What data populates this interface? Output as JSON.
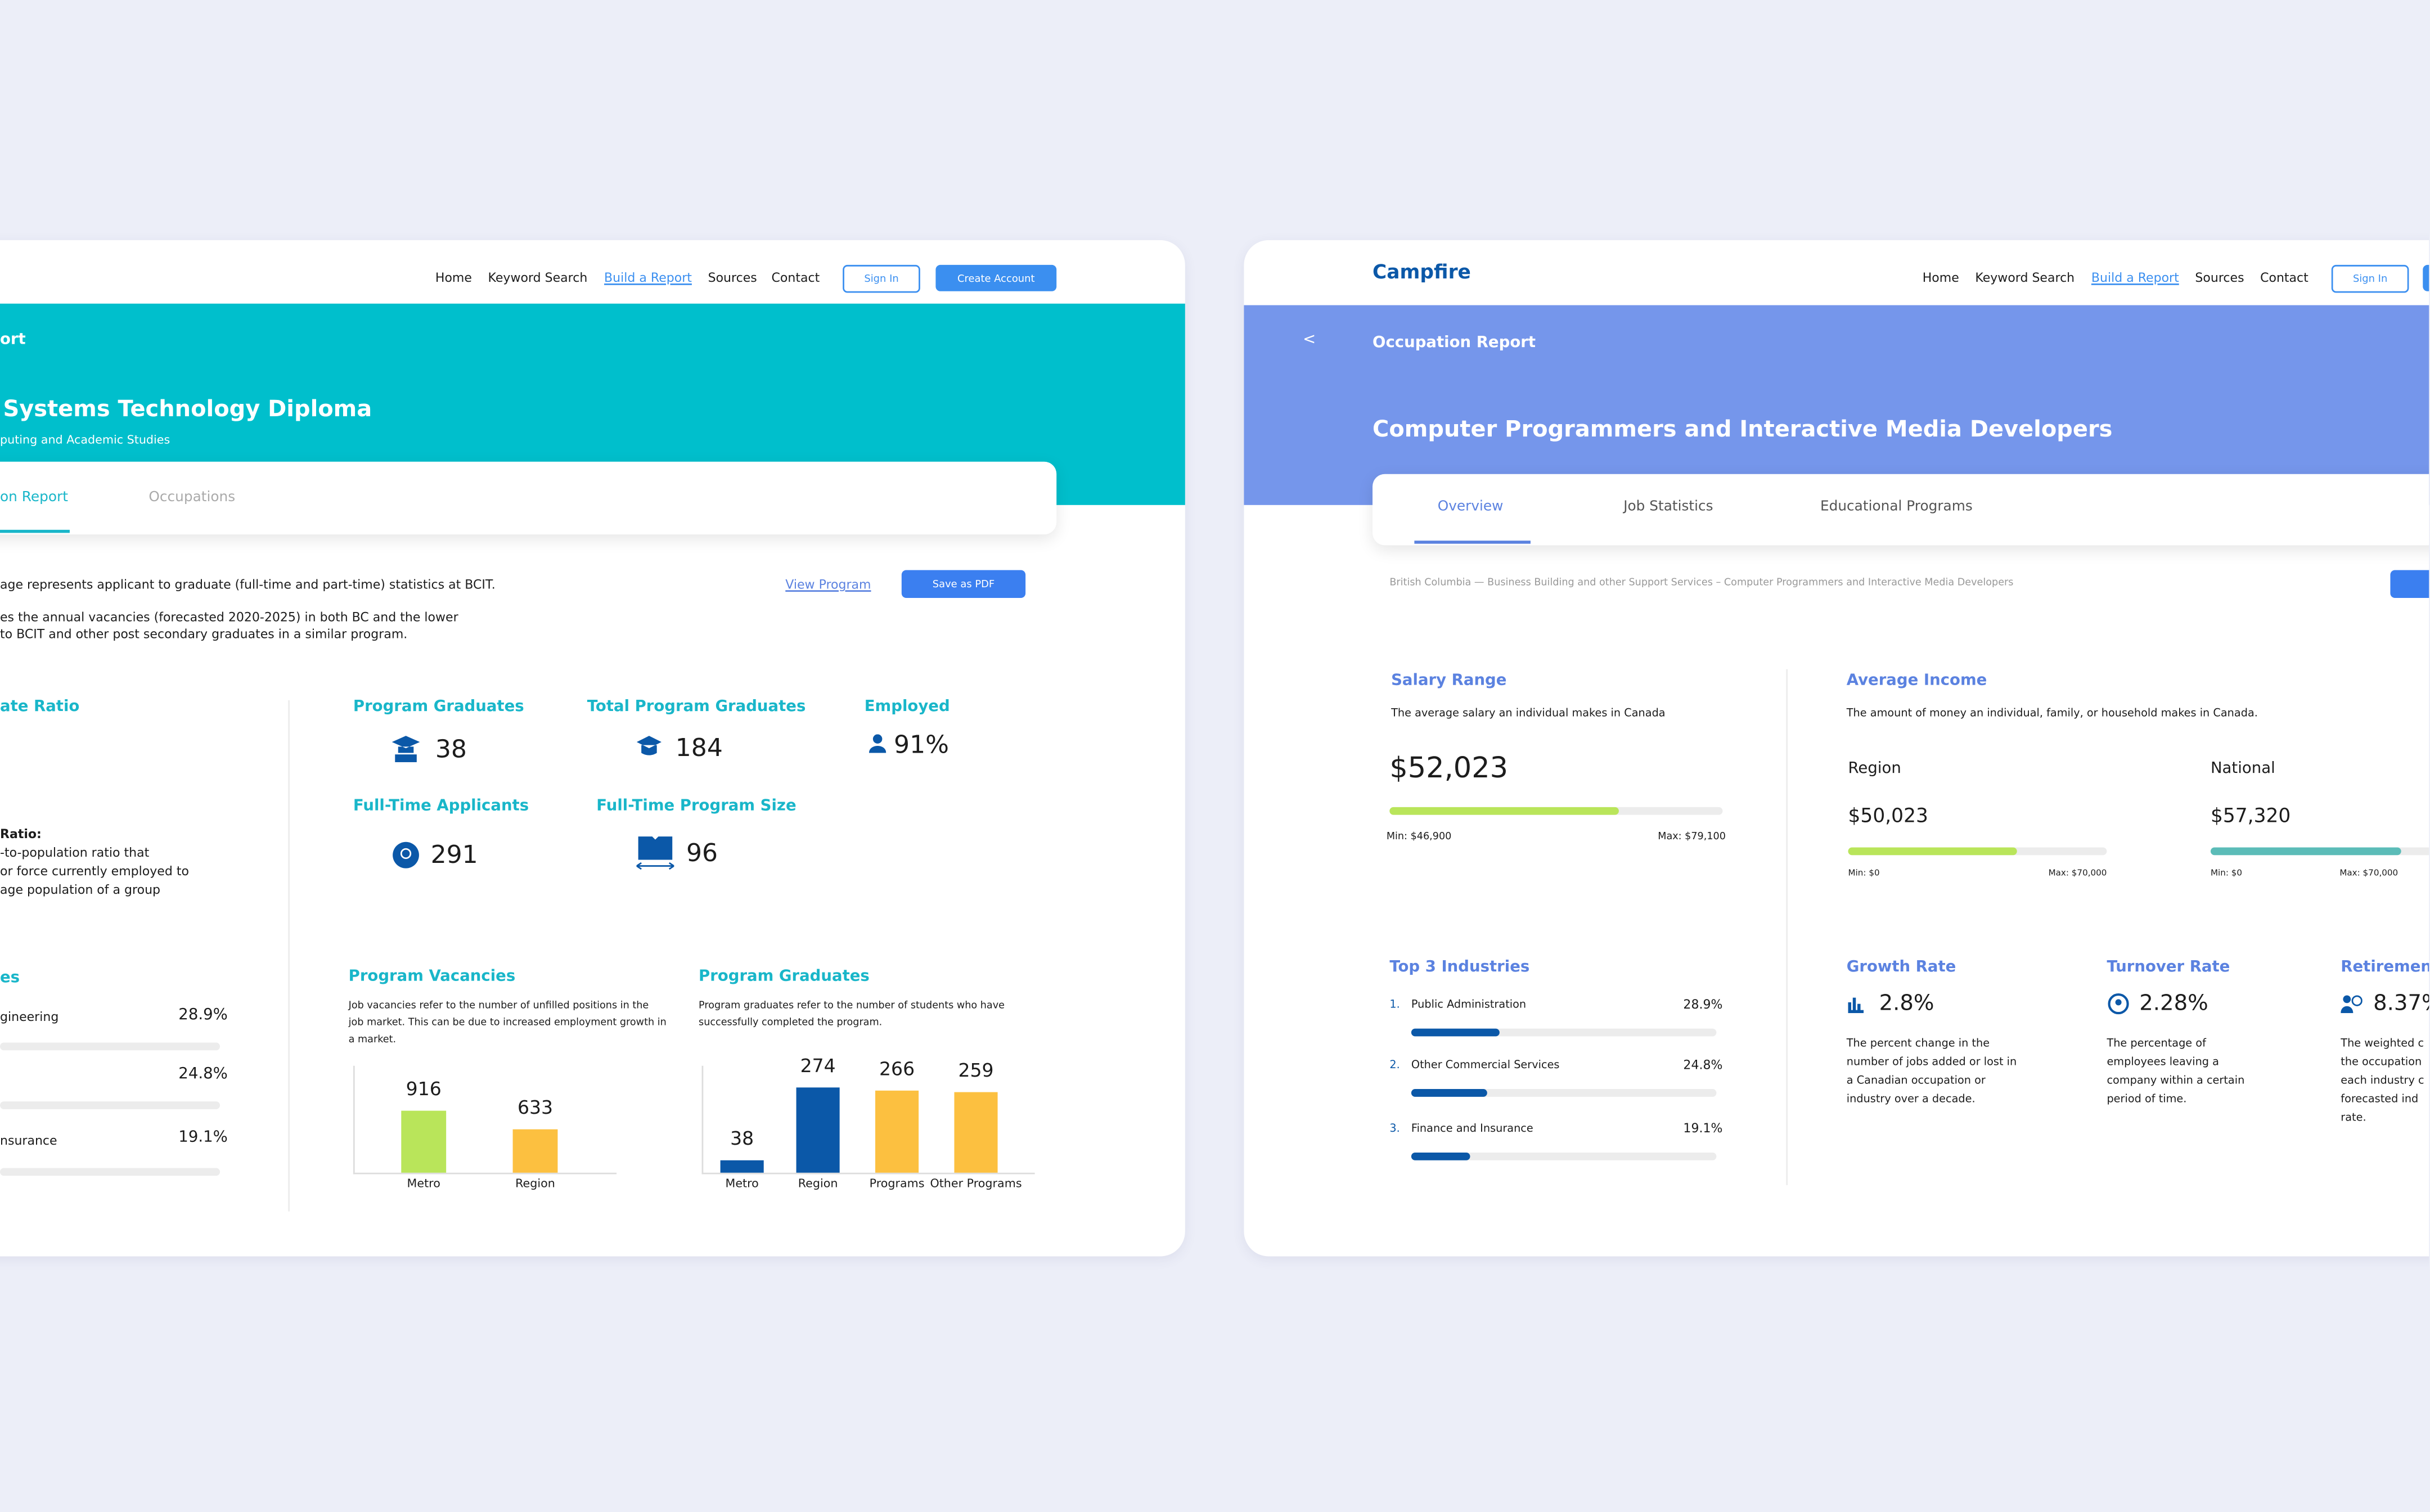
{
  "left_card": {
    "nav": [
      "Home",
      "Keyword Search",
      "Build a Report",
      "Sources",
      "Contact"
    ],
    "sign_in": "Sign In",
    "create_account": "Create Account",
    "breadcrumb": "ort",
    "title": "Systems Technology Diploma",
    "subtitle": "puting and Academic Studies",
    "tabs": [
      "on Report",
      "Occupations"
    ],
    "intro": [
      "age represents applicant to graduate (full-time and part-time) statistics at BCIT.",
      "es the annual vacancies (forecasted 2020-2025) in both BC and the lower",
      "to BCIT and other post secondary graduates in a similar program."
    ],
    "view_program": "View Program",
    "save_pdf": "Save as PDF",
    "ratio": {
      "title": "ate Ratio",
      "label": "Ratio:",
      "text": [
        "-to-population ratio that",
        "or force currently employed to",
        "age population of a group"
      ]
    },
    "stats": [
      {
        "label": "Program Graduates",
        "value": "38"
      },
      {
        "label": "Total Program Graduates",
        "value": "184"
      },
      {
        "label": "Employed",
        "value": "91%"
      },
      {
        "label": "Full-Time Applicants",
        "value": "291"
      },
      {
        "label": "Full-Time Program Size",
        "value": "96"
      }
    ],
    "industries": {
      "title": "es",
      "items": [
        {
          "name": "gineering",
          "value": "28.9%"
        },
        {
          "value": "24.8%"
        },
        {
          "name": "nsurance",
          "value": "19.1%"
        }
      ]
    },
    "vacancies": {
      "title": "Program Vacancies",
      "text": [
        "Job vacancies refer to the number of unfilled positions in the",
        "job market. This can be due to increased employment growth in",
        "a market."
      ],
      "categories": [
        "Metro",
        "Region"
      ],
      "values": [
        916,
        633
      ],
      "colors": [
        "#b9e55a",
        "#fcc040"
      ]
    },
    "graduates": {
      "title": "Program Graduates",
      "text": [
        "Program graduates refer to the number of students who have",
        "successfully completed the program."
      ],
      "categories": [
        "Metro",
        "Region",
        "Programs",
        "Other Programs"
      ],
      "values": [
        38,
        274,
        266,
        259
      ],
      "colors": [
        "#0b58a8",
        "#0b58a8",
        "#fcc040",
        "#fcc040"
      ]
    }
  },
  "right_card": {
    "logo": "Campfire",
    "nav": [
      "Home",
      "Keyword Search",
      "Build a Report",
      "Sources",
      "Contact"
    ],
    "sign_in": "Sign In",
    "back": "<",
    "breadcrumb": "Occupation Report",
    "title": "Computer Programmers and Interactive Media Developers",
    "tabs": [
      "Overview",
      "Job Statistics",
      "Educational Programs"
    ],
    "path": "British Columbia — Business Building and other Support Services – Computer Programmers and Interactive Media Developers",
    "salary": {
      "title": "Salary Range",
      "text": "The average salary an individual makes in Canada",
      "value": "$52,023",
      "min": "Min: $46,900",
      "max": "Max: $79,100"
    },
    "income": {
      "title": "Average Income",
      "text": "The amount of money an individual, family, or household makes in Canada.",
      "region": {
        "label": "Region",
        "value": "$50,023",
        "min": "Min: $0",
        "max": "Max: $70,000"
      },
      "national": {
        "label": "National",
        "value": "$57,320",
        "min": "Min: $0",
        "max": "Max: $70,000"
      }
    },
    "industries": {
      "title": "Top 3 Industries",
      "items": [
        {
          "rank": "1.",
          "name": "Public Administration",
          "value": 28.9,
          "value_label": "28.9%"
        },
        {
          "rank": "2.",
          "name": "Other Commercial Services",
          "value": 24.8,
          "value_label": "24.8%"
        },
        {
          "rank": "3.",
          "name": "Finance and Insurance",
          "value": 19.1,
          "value_label": "19.1%"
        }
      ]
    },
    "rates": [
      {
        "title": "Growth Rate",
        "value": "2.8%",
        "text": [
          "The percent change in the",
          "number of jobs added or lost in",
          "a Canadian occupation or",
          "industry over a decade."
        ]
      },
      {
        "title": "Turnover Rate",
        "value": "2.28%",
        "text": [
          "The percentage of",
          "employees leaving a",
          "company within a certain",
          "period of time."
        ]
      },
      {
        "title": "Retirement",
        "value": "8.37%",
        "text": [
          "The weighted c",
          "the occupation",
          "each industry c",
          "forecasted ind",
          "rate."
        ]
      }
    ]
  }
}
